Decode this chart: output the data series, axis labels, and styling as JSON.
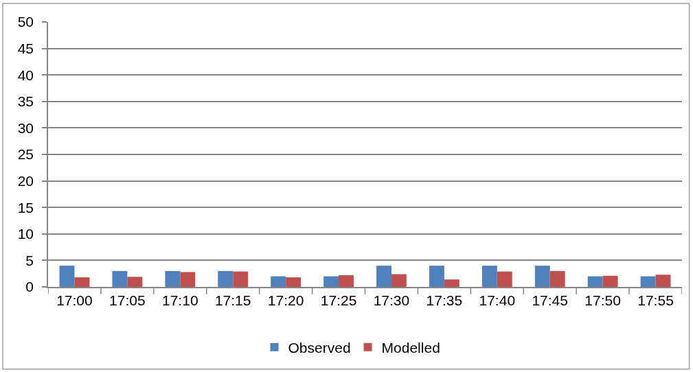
{
  "chart_data": {
    "type": "bar",
    "categories": [
      "17:00",
      "17:05",
      "17:10",
      "17:15",
      "17:20",
      "17:25",
      "17:30",
      "17:35",
      "17:40",
      "17:45",
      "17:50",
      "17:55"
    ],
    "series": [
      {
        "name": "Observed",
        "color": "#4f81bd",
        "values": [
          4.0,
          3.0,
          3.0,
          3.0,
          2.0,
          2.0,
          4.0,
          4.0,
          4.0,
          4.0,
          2.0,
          2.0
        ]
      },
      {
        "name": "Modelled",
        "color": "#c0504d",
        "values": [
          1.8,
          1.9,
          2.8,
          2.9,
          1.8,
          2.2,
          2.4,
          1.4,
          2.9,
          3.0,
          2.1,
          2.3
        ]
      }
    ],
    "ylim": [
      0,
      50
    ],
    "yticks": [
      0,
      5,
      10,
      15,
      20,
      25,
      30,
      35,
      40,
      45,
      50
    ],
    "grid": "y",
    "legend": "bottom"
  }
}
